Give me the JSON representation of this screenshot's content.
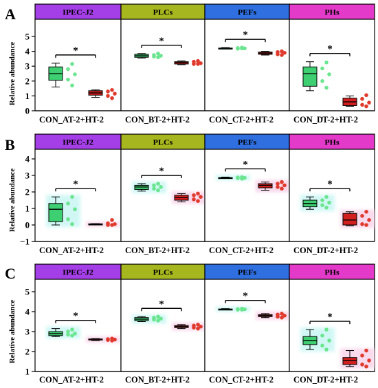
{
  "colors": {
    "IPEC-J2": "#a43ee6",
    "PLCs": "#a6b61e",
    "PEFs": "#2f6fe0",
    "PHs": "#e33ac9",
    "con_fill": "#3dcf72",
    "con_dot": "#6be58f",
    "trt_fill": "#d21e1e",
    "trt_dot": "#e03a2c",
    "con_glow": "#cdf7f4",
    "trt_glow": "#f9d6ea"
  },
  "figure": {
    "ylabel": "Relative abundance",
    "significance_mark": "*"
  },
  "chart_data": [
    {
      "type": "box",
      "panel_label": "A",
      "ylim": [
        0,
        5
      ],
      "yticks": [
        "0",
        "1",
        "2",
        "3",
        "4",
        "5"
      ],
      "ylabel": "Relative abundance",
      "facets": [
        {
          "title": "IPEC-J2",
          "categories": [
            "CON_A",
            "T-2+HT-2"
          ],
          "boxes": [
            {
              "min": 1.6,
              "q1": 2.05,
              "median": 2.5,
              "q3": 2.95,
              "max": 3.2,
              "points": [
                3.15,
                2.8,
                2.45,
                2.1,
                1.7
              ]
            },
            {
              "min": 0.9,
              "q1": 1.05,
              "median": 1.2,
              "q3": 1.35,
              "max": 1.4,
              "points": [
                1.4,
                1.3,
                1.15,
                1.0,
                0.85
              ]
            }
          ],
          "significance": "*"
        },
        {
          "title": "PLCs",
          "categories": [
            "CON_B",
            "T-2+HT-2"
          ],
          "boxes": [
            {
              "min": 3.55,
              "q1": 3.6,
              "median": 3.7,
              "q3": 3.8,
              "max": 3.85,
              "points": [
                3.85,
                3.75,
                3.7,
                3.65,
                3.6
              ]
            },
            {
              "min": 3.1,
              "q1": 3.15,
              "median": 3.25,
              "q3": 3.3,
              "max": 3.35,
              "points": [
                3.35,
                3.3,
                3.2,
                3.15,
                3.15
              ]
            }
          ],
          "significance": "*"
        },
        {
          "title": "PEFs",
          "categories": [
            "CON_C",
            "T-2+HT-2"
          ],
          "boxes": [
            {
              "min": 4.2,
              "q1": 4.2,
              "median": 4.2,
              "q3": 4.22,
              "max": 4.25,
              "points": [
                4.25,
                4.22,
                4.2,
                4.18,
                4.2
              ]
            },
            {
              "min": 3.75,
              "q1": 3.8,
              "median": 3.88,
              "q3": 3.95,
              "max": 4.0,
              "points": [
                4.0,
                3.95,
                3.9,
                3.8,
                3.75
              ]
            }
          ],
          "significance": "*"
        },
        {
          "title": "PHs",
          "categories": [
            "CON_D",
            "T-2+HT-2"
          ],
          "boxes": [
            {
              "min": 1.35,
              "q1": 1.65,
              "median": 2.5,
              "q3": 2.95,
              "max": 3.3,
              "points": [
                3.25,
                2.85,
                2.45,
                2.0,
                1.55
              ]
            },
            {
              "min": 0.3,
              "q1": 0.35,
              "median": 0.6,
              "q3": 0.85,
              "max": 1.0,
              "points": [
                1.05,
                0.8,
                0.55,
                0.4,
                0.3
              ]
            }
          ],
          "significance": "*"
        }
      ],
      "xlabels": [
        "CON_A",
        "T-2+HT-2",
        "CON_B",
        "T-2+HT-2",
        "CON_C",
        "T-2+HT-2",
        "CON_D",
        "T-2+HT-2"
      ]
    },
    {
      "type": "box",
      "panel_label": "B",
      "ylim": [
        -1,
        4
      ],
      "yticks": [
        "−1",
        "0",
        "1",
        "2",
        "3",
        "4"
      ],
      "ylabel": "Relative abundance",
      "facets": [
        {
          "title": "IPEC-J2",
          "categories": [
            "CON_A",
            "T-2+HT-2"
          ],
          "boxes": [
            {
              "min": 0.0,
              "q1": 0.2,
              "median": 0.95,
              "q3": 1.3,
              "max": 1.7,
              "points": [
                1.7,
                1.3,
                0.95,
                0.35,
                0.05
              ]
            },
            {
              "min": 0.0,
              "q1": 0.0,
              "median": 0.05,
              "q3": 0.07,
              "max": 0.08,
              "points": [
                0.3,
                0.1,
                0.05,
                0.0,
                0.0
              ]
            }
          ],
          "significance": "*"
        },
        {
          "title": "PLCs",
          "categories": [
            "CON_B",
            "T-2+HT-2"
          ],
          "boxes": [
            {
              "min": 2.05,
              "q1": 2.15,
              "median": 2.3,
              "q3": 2.4,
              "max": 2.5,
              "points": [
                2.5,
                2.4,
                2.3,
                2.2,
                2.1
              ]
            },
            {
              "min": 1.4,
              "q1": 1.5,
              "median": 1.65,
              "q3": 1.8,
              "max": 1.9,
              "points": [
                1.9,
                1.8,
                1.7,
                1.55,
                1.45
              ]
            }
          ],
          "significance": "*"
        },
        {
          "title": "PEFs",
          "categories": [
            "CON_C",
            "T-2+HT-2"
          ],
          "boxes": [
            {
              "min": 2.83,
              "q1": 2.84,
              "median": 2.85,
              "q3": 2.87,
              "max": 2.9,
              "points": [
                2.9,
                2.88,
                2.85,
                2.83,
                2.8
              ]
            },
            {
              "min": 2.1,
              "q1": 2.25,
              "median": 2.4,
              "q3": 2.5,
              "max": 2.6,
              "points": [
                2.6,
                2.5,
                2.4,
                2.3,
                2.2
              ]
            }
          ],
          "significance": "*"
        },
        {
          "title": "PHs",
          "categories": [
            "CON_D",
            "T-2+HT-2"
          ],
          "boxes": [
            {
              "min": 0.95,
              "q1": 1.1,
              "median": 1.3,
              "q3": 1.5,
              "max": 1.7,
              "points": [
                1.7,
                1.5,
                1.35,
                1.2,
                1.05
              ]
            },
            {
              "min": -0.05,
              "q1": 0.0,
              "median": 0.3,
              "q3": 0.7,
              "max": 0.8,
              "points": [
                0.8,
                0.55,
                0.3,
                0.05,
                0.0
              ]
            }
          ],
          "significance": "*"
        }
      ],
      "xlabels": [
        "CON_A",
        "T-2+HT-2",
        "CON_B",
        "T-2+HT-2",
        "CON_C",
        "T-2+HT-2",
        "CON_D",
        "T-2+HT-2"
      ]
    },
    {
      "type": "box",
      "panel_label": "C",
      "ylim": [
        1,
        5
      ],
      "yticks": [
        "1",
        "2",
        "3",
        "4",
        "5"
      ],
      "ylabel": "Relative abundance",
      "facets": [
        {
          "title": "IPEC-J2",
          "categories": [
            "CON_A",
            "T-2+HT-2"
          ],
          "boxes": [
            {
              "min": 2.75,
              "q1": 2.8,
              "median": 2.9,
              "q3": 3.0,
              "max": 3.15,
              "points": [
                3.1,
                3.0,
                2.9,
                2.85,
                2.8
              ]
            },
            {
              "min": 2.55,
              "q1": 2.6,
              "median": 2.62,
              "q3": 2.63,
              "max": 2.65,
              "points": [
                2.65,
                2.62,
                2.6,
                2.58,
                2.55
              ]
            }
          ],
          "significance": "*"
        },
        {
          "title": "PLCs",
          "categories": [
            "CON_B",
            "T-2+HT-2"
          ],
          "boxes": [
            {
              "min": 3.5,
              "q1": 3.55,
              "median": 3.62,
              "q3": 3.7,
              "max": 3.75,
              "points": [
                3.75,
                3.7,
                3.65,
                3.6,
                3.55
              ]
            },
            {
              "min": 3.15,
              "q1": 3.2,
              "median": 3.25,
              "q3": 3.3,
              "max": 3.35,
              "points": [
                3.35,
                3.3,
                3.25,
                3.2,
                3.15
              ]
            }
          ],
          "significance": "*"
        },
        {
          "title": "PEFs",
          "categories": [
            "CON_C",
            "T-2+HT-2"
          ],
          "boxes": [
            {
              "min": 4.1,
              "q1": 4.1,
              "median": 4.12,
              "q3": 4.13,
              "max": 4.15,
              "points": [
                4.15,
                4.13,
                4.12,
                4.1,
                4.1
              ]
            },
            {
              "min": 3.7,
              "q1": 3.75,
              "median": 3.8,
              "q3": 3.85,
              "max": 3.9,
              "points": [
                3.9,
                3.85,
                3.8,
                3.75,
                3.7
              ]
            }
          ],
          "significance": "*"
        },
        {
          "title": "PHs",
          "categories": [
            "CON_D",
            "T-2+HT-2"
          ],
          "boxes": [
            {
              "min": 2.1,
              "q1": 2.35,
              "median": 2.55,
              "q3": 2.75,
              "max": 3.1,
              "points": [
                3.1,
                2.8,
                2.55,
                2.3,
                2.1
              ]
            },
            {
              "min": 1.25,
              "q1": 1.35,
              "median": 1.55,
              "q3": 1.7,
              "max": 2.05,
              "points": [
                2.05,
                1.8,
                1.55,
                1.35,
                1.25
              ]
            }
          ],
          "significance": "*"
        }
      ],
      "xlabels": [
        "CON_A",
        "T-2+HT-2",
        "CON_B",
        "T-2+HT-2",
        "CON_C",
        "T-2+HT-2",
        "CON_D",
        "T-2+HT-2"
      ]
    }
  ]
}
